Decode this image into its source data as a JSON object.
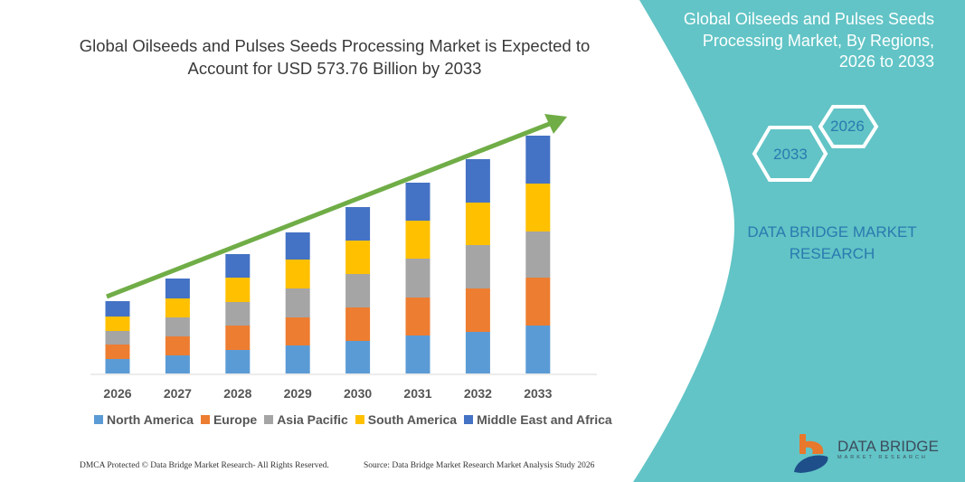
{
  "header": {
    "title": "Global Oilseeds and Pulses Seeds Processing Market is Expected to Account for USD 573.76 Billion by 2033"
  },
  "side_panel": {
    "title": "Global Oilseeds and Pulses Seeds Processing Market, By Regions, 2026 to 2033",
    "hex_start": "2026",
    "hex_end": "2033",
    "brand": "DATA BRIDGE MARKET RESEARCH",
    "logo_text": "DATA BRIDGE",
    "logo_sub": "MARKET RESEARCH",
    "panel_color": "#62c4c6"
  },
  "footer": {
    "left": "DMCA Protected © Data Bridge Market Research-  All Rights Reserved.",
    "right": "Source: Data Bridge Market Research  Market Analysis Study 2026"
  },
  "chart_data": {
    "type": "bar",
    "stacked": true,
    "title": "",
    "xlabel": "",
    "ylabel": "",
    "grid": false,
    "legend_position": "bottom",
    "trend_arrow_color": "#70ad47",
    "categories": [
      "2026",
      "2027",
      "2028",
      "2029",
      "2030",
      "2031",
      "2032",
      "2033"
    ],
    "ylim": [
      0,
      270
    ],
    "series": [
      {
        "name": "North America",
        "color": "#5b9bd5",
        "values": [
          16,
          20,
          26,
          31,
          36,
          42,
          46,
          53
        ]
      },
      {
        "name": "Europe",
        "color": "#ed7d31",
        "values": [
          16,
          21,
          27,
          31,
          37,
          42,
          48,
          53
        ]
      },
      {
        "name": "Asia Pacific",
        "color": "#a5a5a5",
        "values": [
          15,
          21,
          26,
          32,
          37,
          43,
          48,
          51
        ]
      },
      {
        "name": "South America",
        "color": "#ffc000",
        "values": [
          16,
          21,
          27,
          32,
          37,
          42,
          47,
          53
        ]
      },
      {
        "name": "Middle East and Africa",
        "color": "#4472c4",
        "values": [
          17,
          22,
          26,
          30,
          37,
          42,
          48,
          53
        ]
      }
    ]
  }
}
